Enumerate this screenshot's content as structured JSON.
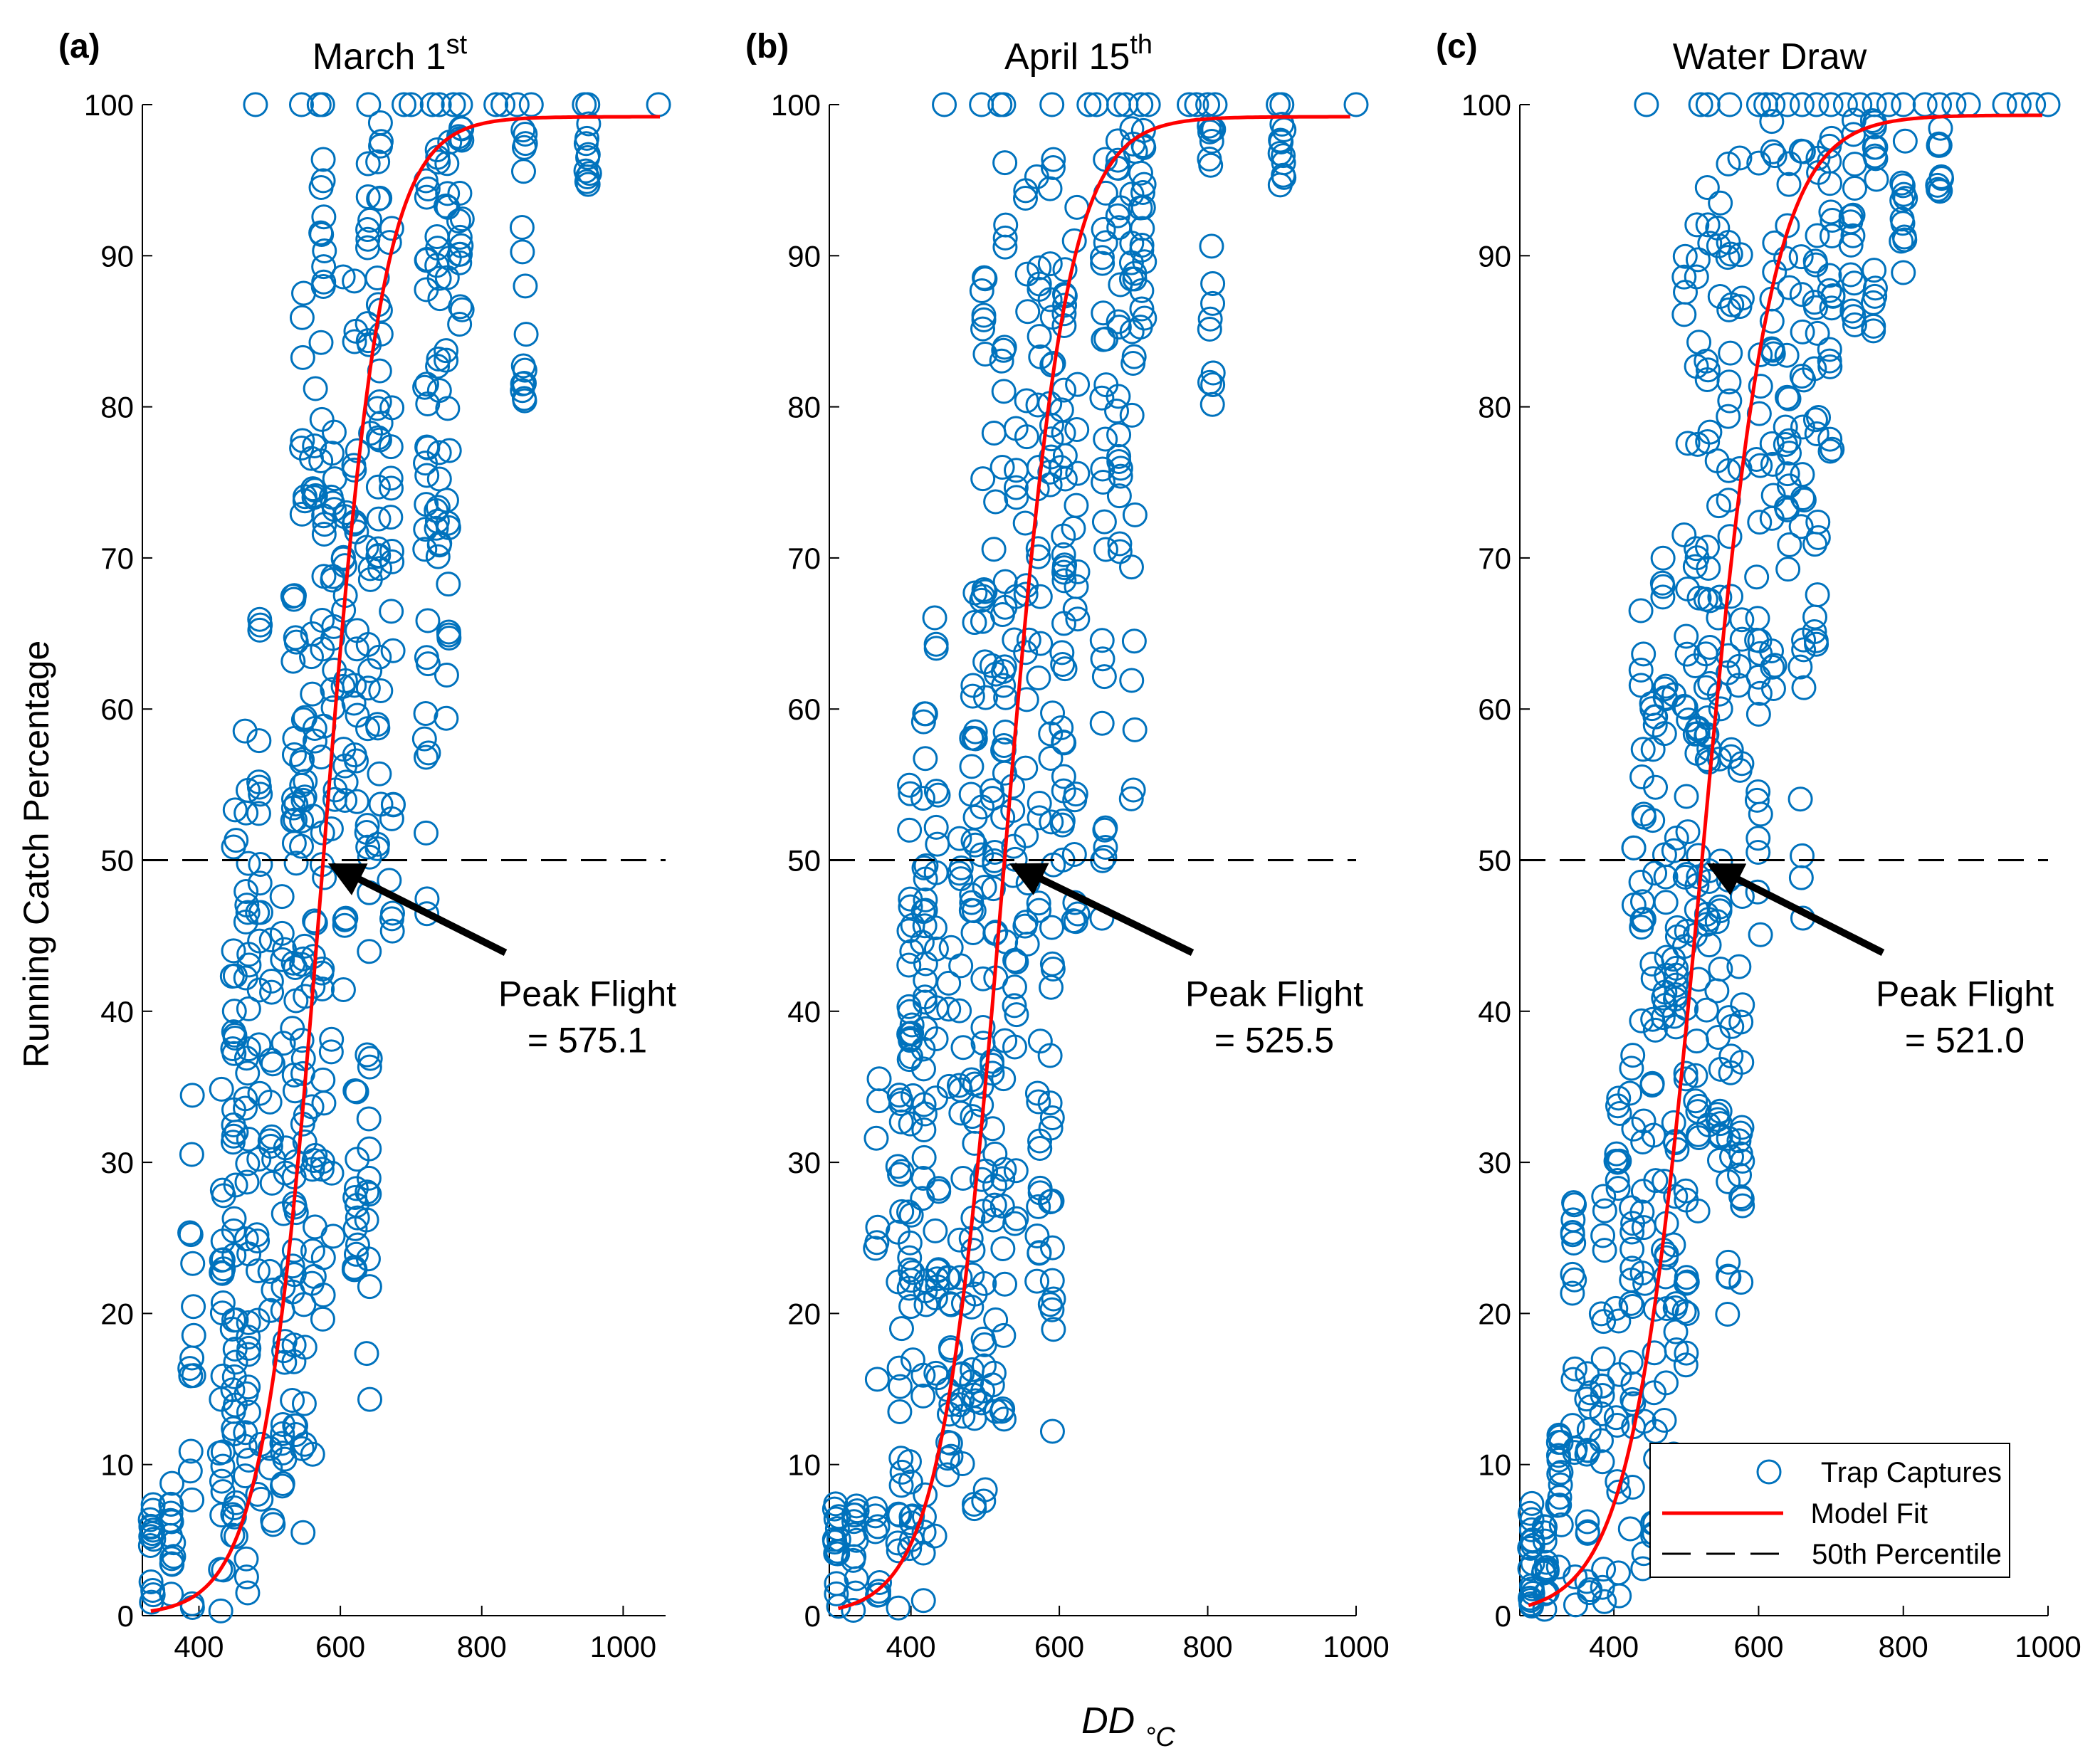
{
  "figure": {
    "ylabel": "Running Catch Percentage",
    "xlabel_main": "DD",
    "xlabel_sub": "°C"
  },
  "legend": {
    "items": [
      "Trap Captures",
      "Model Fit",
      "50th Percentile"
    ],
    "placement": "bottom-right of panel (c)"
  },
  "colors": {
    "points": "#0072BD",
    "fit": "#FF0000",
    "percentile": "#000000",
    "arrow": "#000000"
  },
  "chart_data": [
    {
      "type": "scatter",
      "panel_label": "(a)",
      "title": "March 1",
      "title_sup": "st",
      "xlim": [
        320,
        1060
      ],
      "ylim": [
        0,
        100
      ],
      "xticks": [
        400,
        600,
        800,
        1000
      ],
      "yticks": [
        0,
        10,
        20,
        30,
        40,
        50,
        60,
        70,
        80,
        90,
        100
      ],
      "peak_flight": 575.1,
      "annotation_line1": "Peak Flight",
      "annotation_line2": "= 575.1",
      "reference_y": 50,
      "fit": {
        "model": "logistic",
        "midpoint": 575.1,
        "scale": 42,
        "max": 99.2
      },
      "columns": [
        {
          "x": 333,
          "ymin": 0,
          "ymax": 8,
          "n": 14
        },
        {
          "x": 362,
          "ymin": 0,
          "ymax": 9,
          "n": 14
        },
        {
          "x": 390,
          "ymin": 0,
          "ymax": 38,
          "n": 16
        },
        {
          "x": 432,
          "ymin": 0,
          "ymax": 35,
          "n": 22
        },
        {
          "x": 450,
          "ymin": 0,
          "ymax": 55,
          "n": 38
        },
        {
          "x": 468,
          "ymin": 0,
          "ymax": 60,
          "n": 36
        },
        {
          "x": 485,
          "ymin": 5,
          "ymax": 67,
          "n": 24
        },
        {
          "x": 503,
          "ymin": 5,
          "ymax": 45,
          "n": 18
        },
        {
          "x": 520,
          "ymin": 8,
          "ymax": 52,
          "n": 20
        },
        {
          "x": 535,
          "ymin": 3,
          "ymax": 70,
          "n": 36
        },
        {
          "x": 548,
          "ymin": 5,
          "ymax": 91,
          "n": 34
        },
        {
          "x": 562,
          "ymin": 10,
          "ymax": 82,
          "n": 26
        },
        {
          "x": 575,
          "ymin": 12,
          "ymax": 98,
          "n": 34
        },
        {
          "x": 590,
          "ymin": 25,
          "ymax": 80,
          "n": 20
        },
        {
          "x": 606,
          "ymin": 40,
          "ymax": 95,
          "n": 18
        },
        {
          "x": 622,
          "ymin": 22,
          "ymax": 96,
          "n": 30
        },
        {
          "x": 640,
          "ymin": 11,
          "ymax": 98,
          "n": 36
        },
        {
          "x": 655,
          "ymin": 50,
          "ymax": 99,
          "n": 30
        },
        {
          "x": 672,
          "ymin": 43,
          "ymax": 94,
          "n": 18
        },
        {
          "x": 722,
          "ymin": 46,
          "ymax": 99,
          "n": 26
        },
        {
          "x": 738,
          "ymin": 70,
          "ymax": 99,
          "n": 20
        },
        {
          "x": 752,
          "ymin": 51,
          "ymax": 99,
          "n": 20
        },
        {
          "x": 770,
          "ymin": 84,
          "ymax": 99,
          "n": 16
        },
        {
          "x": 860,
          "ymin": 80,
          "ymax": 99,
          "n": 16
        },
        {
          "x": 950,
          "ymin": 94,
          "ymax": 99,
          "n": 10
        }
      ],
      "top_x": [
        480,
        545,
        570,
        575,
        640,
        690,
        700,
        730,
        740,
        760,
        770,
        820,
        830,
        850,
        870,
        945,
        950,
        1050
      ]
    },
    {
      "type": "scatter",
      "panel_label": "(b)",
      "title": "April 15",
      "title_sup": "th",
      "xlim": [
        290,
        1000
      ],
      "ylim": [
        0,
        100
      ],
      "xticks": [
        400,
        600,
        800,
        1000
      ],
      "yticks": [
        0,
        10,
        20,
        30,
        40,
        50,
        60,
        70,
        80,
        90,
        100
      ],
      "peak_flight": 525.5,
      "annotation_line1": "Peak Flight",
      "annotation_line2": "= 525.5",
      "reference_y": 50,
      "fit": {
        "model": "logistic",
        "midpoint": 525.5,
        "scale": 42,
        "max": 99.2
      },
      "columns": [
        {
          "x": 300,
          "ymin": 0,
          "ymax": 8,
          "n": 14
        },
        {
          "x": 325,
          "ymin": 0,
          "ymax": 8,
          "n": 12
        },
        {
          "x": 355,
          "ymin": 0,
          "ymax": 38,
          "n": 16
        },
        {
          "x": 385,
          "ymin": 0,
          "ymax": 35,
          "n": 22
        },
        {
          "x": 400,
          "ymin": 0,
          "ymax": 55,
          "n": 38
        },
        {
          "x": 418,
          "ymin": 0,
          "ymax": 60,
          "n": 36
        },
        {
          "x": 435,
          "ymin": 5,
          "ymax": 67,
          "n": 24
        },
        {
          "x": 452,
          "ymin": 5,
          "ymax": 45,
          "n": 18
        },
        {
          "x": 468,
          "ymin": 8,
          "ymax": 54,
          "n": 20
        },
        {
          "x": 484,
          "ymin": 3,
          "ymax": 70,
          "n": 36
        },
        {
          "x": 498,
          "ymin": 5,
          "ymax": 91,
          "n": 34
        },
        {
          "x": 512,
          "ymin": 10,
          "ymax": 82,
          "n": 26
        },
        {
          "x": 525,
          "ymin": 12,
          "ymax": 98,
          "n": 34
        },
        {
          "x": 540,
          "ymin": 25,
          "ymax": 80,
          "n": 20
        },
        {
          "x": 556,
          "ymin": 40,
          "ymax": 95,
          "n": 18
        },
        {
          "x": 572,
          "ymin": 22,
          "ymax": 96,
          "n": 30
        },
        {
          "x": 590,
          "ymin": 11,
          "ymax": 98,
          "n": 36
        },
        {
          "x": 605,
          "ymin": 50,
          "ymax": 99,
          "n": 30
        },
        {
          "x": 622,
          "ymin": 43,
          "ymax": 94,
          "n": 18
        },
        {
          "x": 660,
          "ymin": 46,
          "ymax": 99,
          "n": 26
        },
        {
          "x": 680,
          "ymin": 70,
          "ymax": 99,
          "n": 20
        },
        {
          "x": 700,
          "ymin": 51,
          "ymax": 99,
          "n": 20
        },
        {
          "x": 712,
          "ymin": 84,
          "ymax": 99,
          "n": 16
        },
        {
          "x": 805,
          "ymin": 80,
          "ymax": 99,
          "n": 16
        },
        {
          "x": 900,
          "ymin": 94,
          "ymax": 99,
          "n": 10
        }
      ],
      "top_x": [
        445,
        495,
        520,
        525,
        590,
        640,
        650,
        680,
        690,
        710,
        720,
        775,
        785,
        800,
        810,
        895,
        900,
        1000
      ]
    },
    {
      "type": "scatter",
      "panel_label": "(c)",
      "title": "Water Draw",
      "title_sup": "",
      "xlim": [
        270,
        1000
      ],
      "ylim": [
        0,
        100
      ],
      "xticks": [
        400,
        600,
        800,
        1000
      ],
      "yticks": [
        0,
        10,
        20,
        30,
        40,
        50,
        60,
        70,
        80,
        90,
        100
      ],
      "peak_flight": 521.0,
      "annotation_line1": "Peak Flight",
      "annotation_line2": "= 521.0",
      "reference_y": 50,
      "fit": {
        "model": "logistic",
        "midpoint": 521.0,
        "scale": 48,
        "max": 99.3
      },
      "columns": [
        {
          "x": 285,
          "ymin": 0,
          "ymax": 9,
          "n": 18
        },
        {
          "x": 305,
          "ymin": 0,
          "ymax": 6,
          "n": 14
        },
        {
          "x": 325,
          "ymin": 0,
          "ymax": 12,
          "n": 14
        },
        {
          "x": 345,
          "ymin": 0,
          "ymax": 28,
          "n": 16
        },
        {
          "x": 365,
          "ymin": 0,
          "ymax": 17,
          "n": 14
        },
        {
          "x": 385,
          "ymin": 0,
          "ymax": 30,
          "n": 16
        },
        {
          "x": 405,
          "ymin": 0,
          "ymax": 35,
          "n": 18
        },
        {
          "x": 425,
          "ymin": 2,
          "ymax": 53,
          "n": 22
        },
        {
          "x": 440,
          "ymin": 2,
          "ymax": 67,
          "n": 24
        },
        {
          "x": 455,
          "ymin": 4,
          "ymax": 62,
          "n": 26
        },
        {
          "x": 470,
          "ymin": 8,
          "ymax": 70,
          "n": 28
        },
        {
          "x": 485,
          "ymin": 10,
          "ymax": 62,
          "n": 24
        },
        {
          "x": 500,
          "ymin": 15,
          "ymax": 92,
          "n": 30
        },
        {
          "x": 515,
          "ymin": 20,
          "ymax": 94,
          "n": 30
        },
        {
          "x": 530,
          "ymin": 25,
          "ymax": 96,
          "n": 30
        },
        {
          "x": 545,
          "ymin": 30,
          "ymax": 97,
          "n": 26
        },
        {
          "x": 560,
          "ymin": 15,
          "ymax": 98,
          "n": 30
        },
        {
          "x": 575,
          "ymin": 17,
          "ymax": 99,
          "n": 26
        },
        {
          "x": 600,
          "ymin": 42,
          "ymax": 99,
          "n": 22
        },
        {
          "x": 620,
          "ymin": 60,
          "ymax": 99,
          "n": 18
        },
        {
          "x": 640,
          "ymin": 67,
          "ymax": 99,
          "n": 18
        },
        {
          "x": 660,
          "ymin": 46,
          "ymax": 99,
          "n": 20
        },
        {
          "x": 680,
          "ymin": 61,
          "ymax": 99,
          "n": 20
        },
        {
          "x": 700,
          "ymin": 72,
          "ymax": 99,
          "n": 18
        },
        {
          "x": 730,
          "ymin": 84,
          "ymax": 99,
          "n": 14
        },
        {
          "x": 760,
          "ymin": 85,
          "ymax": 99,
          "n": 14
        },
        {
          "x": 800,
          "ymin": 88,
          "ymax": 99,
          "n": 12
        },
        {
          "x": 850,
          "ymin": 94,
          "ymax": 99,
          "n": 10
        }
      ],
      "top_x": [
        445,
        520,
        530,
        560,
        600,
        610,
        620,
        640,
        660,
        680,
        700,
        720,
        740,
        760,
        780,
        800,
        830,
        850,
        870,
        890,
        940,
        960,
        980,
        1000
      ]
    }
  ]
}
